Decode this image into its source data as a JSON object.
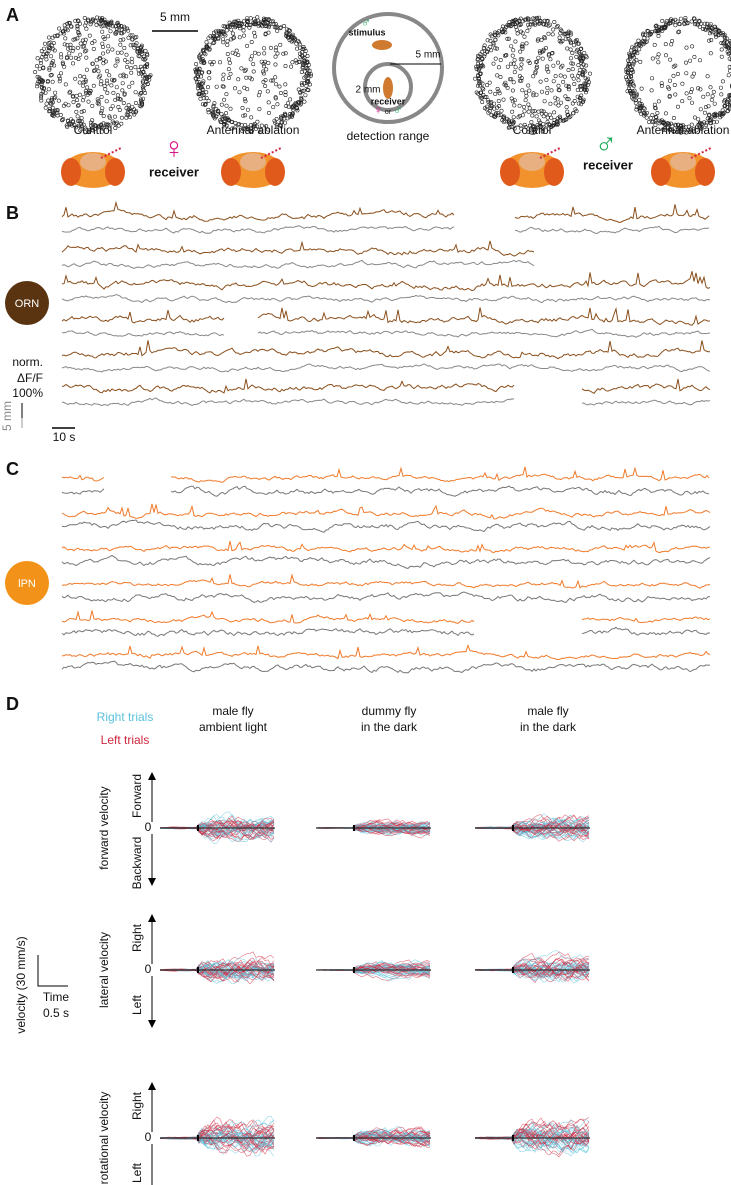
{
  "panel_a": {
    "label": "A",
    "scale": "5 mm",
    "female": {
      "control": "Control",
      "ablation": "Antennal ablation",
      "symbol": "♀",
      "receiver": "receiver"
    },
    "male": {
      "control": "Control",
      "ablation": "Antennal ablation",
      "symbol": "♂",
      "receiver": "receiver"
    },
    "range": {
      "title": "detection range",
      "stimulus_symbol": "♂",
      "stimulus": "stimulus",
      "outer": "5 mm",
      "inner": "2 mm",
      "receiver": "receiver",
      "female_symbol": "♀",
      "or": "or",
      "male_symbol": "♂"
    }
  },
  "panel_b": {
    "label": "B",
    "neuron": "ORN",
    "scale_lines": [
      "norm.",
      "ΔF/F",
      "100%"
    ],
    "distance": "5 mm",
    "time": "10 s"
  },
  "panel_c": {
    "label": "C",
    "neuron": "lPN"
  },
  "panel_d": {
    "label": "D",
    "legend": [
      "Right trials",
      "Left trials"
    ],
    "columns": [
      [
        "male fly",
        "ambient light"
      ],
      [
        "dummy fly",
        "in the dark"
      ],
      [
        "male fly",
        "in the dark"
      ]
    ],
    "rows": [
      {
        "name": "forward velocity",
        "up": "Forward",
        "zero": "0",
        "down": "Backward"
      },
      {
        "name": "lateral velocity",
        "up": "Right",
        "zero": "0",
        "down": "Left"
      },
      {
        "name": "rotational velocity",
        "up": "Right",
        "zero": "0",
        "down": "Left"
      }
    ],
    "scale": {
      "velocity": "velocity (30 mm/s)",
      "time": "Time",
      "duration": "0.5 s"
    }
  }
}
